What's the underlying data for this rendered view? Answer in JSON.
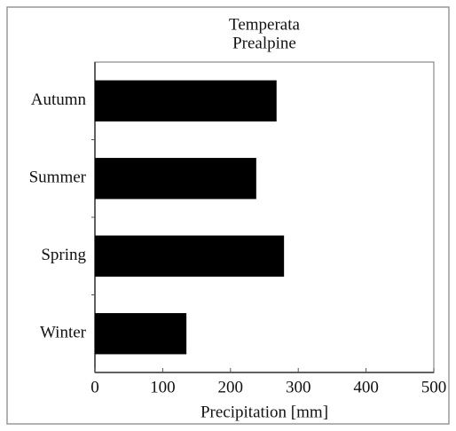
{
  "chart_data": {
    "type": "barh",
    "title": "Temperata",
    "subtitle": "Prealpine",
    "categories": [
      "Autumn",
      "Summer",
      "Spring",
      "Winter"
    ],
    "values": [
      268,
      238,
      279,
      135
    ],
    "color": "#000000",
    "xlabel": "Precipitation [mm]",
    "xlim": [
      0,
      500
    ],
    "xticks": [
      0,
      100,
      200,
      300,
      400,
      500
    ]
  }
}
